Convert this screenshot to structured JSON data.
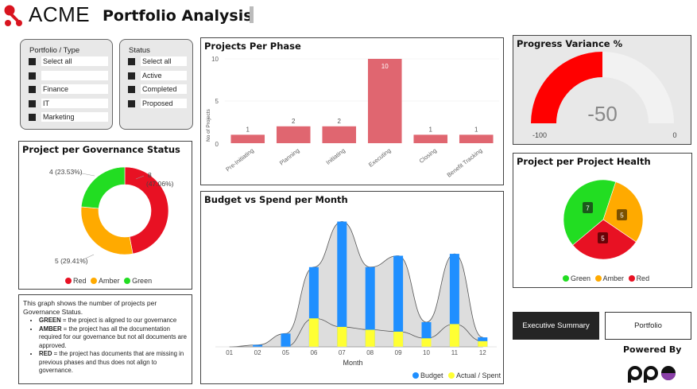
{
  "header": {
    "brand": "ACME",
    "title": "Portfolio Analysis"
  },
  "colors": {
    "red": "#e81123",
    "amber": "#ffaa00",
    "green": "#22dd22",
    "phase_bar": "#e06670",
    "budget": "#1f8fff",
    "actual": "#ffff33",
    "gauge_fill": "#ff0000",
    "gauge_bg": "#eeeeee"
  },
  "slicer_portfolio": {
    "title": "Portfolio / Type",
    "items": [
      "Select all",
      "",
      "Finance",
      "IT",
      "Marketing"
    ]
  },
  "slicer_status": {
    "title": "Status",
    "items": [
      "Select all",
      "Active",
      "Completed",
      "Proposed"
    ]
  },
  "governance": {
    "title": "Project per Governance Status",
    "labels": {
      "green": "4 (23.53%)",
      "red_count": "8",
      "red_pct": "(47.06%)",
      "amber": "5 (29.41%)"
    },
    "legend": [
      "Red",
      "Amber",
      "Green"
    ]
  },
  "note": {
    "intro": "This graph shows the number of projects per Governance Status.",
    "items": [
      {
        "key": "GREEN",
        "text": " = the project is aligned to our governance"
      },
      {
        "key": "AMBER",
        "text": " = the project has all the documentation required for our governance but not all documents are approved."
      },
      {
        "key": "RED",
        "text": " = the project has documents that are missing in previous phases and thus does not align to governance."
      }
    ]
  },
  "phases": {
    "title": "Projects Per Phase",
    "ylabel": "No of Projects",
    "yticks": [
      "10",
      "5",
      "0"
    ]
  },
  "budget": {
    "title": "Budget vs Spend per Month",
    "xlabel": "Month",
    "legend": [
      "Budget",
      "Actual / Spent"
    ]
  },
  "progress": {
    "title": "Progress Variance %",
    "value": "-50",
    "min": "-100",
    "max": "0"
  },
  "health": {
    "title": "Project per Project Health",
    "labels": {
      "green": "7",
      "amber": "5",
      "red": "5"
    },
    "legend": [
      "Green",
      "Amber",
      "Red"
    ]
  },
  "nav": {
    "executive": "Executive Summary",
    "portfolio": "Portfolio"
  },
  "footer": {
    "powered_by": "Powered By"
  },
  "chart_data": [
    {
      "type": "bar",
      "title": "Projects Per Phase",
      "ylabel": "No of Projects",
      "categories": [
        "Pre-Initiating",
        "Planning",
        "Initiating",
        "Executing",
        "Closing",
        "Benefit Tracking"
      ],
      "values": [
        1,
        2,
        2,
        10,
        1,
        1
      ],
      "ylim": [
        0,
        10
      ]
    },
    {
      "type": "bar",
      "title": "Budget vs Spend per Month",
      "xlabel": "Month",
      "categories": [
        "01",
        "02",
        "05",
        "06",
        "07",
        "08",
        "09",
        "10",
        "11",
        "12"
      ],
      "series": [
        {
          "name": "Budget",
          "values": [
            0,
            0.1,
            0.7,
            4.2,
            6.6,
            4.2,
            4.8,
            1.3,
            4.9,
            0.5
          ]
        },
        {
          "name": "Actual / Spent",
          "values": [
            0,
            0,
            0,
            1.5,
            1.05,
            0.9,
            0.8,
            0.45,
            1.2,
            0.3
          ]
        }
      ],
      "ylim": [
        0,
        7
      ]
    },
    {
      "type": "pie",
      "title": "Project per Governance Status",
      "categories": [
        "Red",
        "Amber",
        "Green"
      ],
      "values": [
        8,
        5,
        4
      ],
      "percentages": [
        "47.06%",
        "29.41%",
        "23.53%"
      ]
    },
    {
      "type": "pie",
      "title": "Project per Project Health",
      "categories": [
        "Green",
        "Amber",
        "Red"
      ],
      "values": [
        7,
        5,
        5
      ]
    }
  ]
}
